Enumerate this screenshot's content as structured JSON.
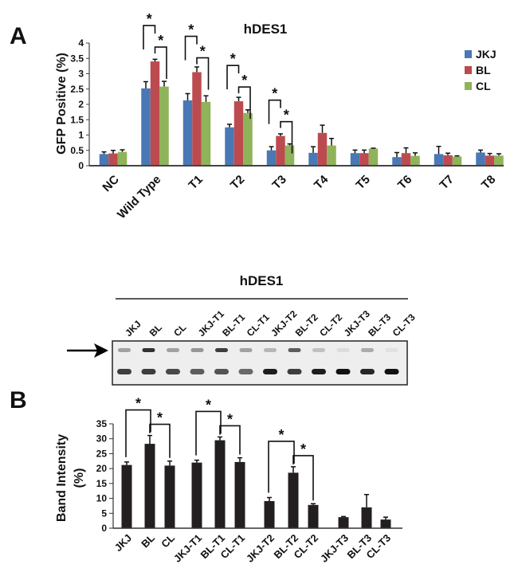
{
  "panel_labels": [
    "A",
    "B"
  ],
  "chart_data": [
    {
      "type": "bar",
      "title": "hDES1",
      "ylabel": "GFP Positive (%)",
      "xlabel": "",
      "ylim": [
        0,
        4
      ],
      "yticks": [
        "0",
        "0.5",
        "1",
        "1.5",
        "2",
        "2.5",
        "3",
        "3.5",
        "4"
      ],
      "categories": [
        "NC",
        "Wild Type",
        "T1",
        "T2",
        "T3",
        "T4",
        "T5",
        "T6",
        "T7",
        "T8"
      ],
      "legend_position": "top-right",
      "series": [
        {
          "name": "JKJ",
          "color": "#4a78b5",
          "values": [
            0.38,
            2.52,
            2.13,
            1.25,
            0.5,
            0.42,
            0.41,
            0.28,
            0.38,
            0.43
          ],
          "errors": [
            0.07,
            0.22,
            0.22,
            0.1,
            0.12,
            0.2,
            0.1,
            0.15,
            0.25,
            0.08
          ]
        },
        {
          "name": "BL",
          "color": "#bc4b50",
          "values": [
            0.4,
            3.4,
            3.05,
            2.1,
            0.97,
            1.07,
            0.41,
            0.41,
            0.34,
            0.33
          ],
          "errors": [
            0.1,
            0.07,
            0.17,
            0.13,
            0.07,
            0.25,
            0.1,
            0.17,
            0.07,
            0.07
          ]
        },
        {
          "name": "CL",
          "color": "#8fb35a",
          "values": [
            0.45,
            2.58,
            2.08,
            1.72,
            0.66,
            0.66,
            0.56,
            0.32,
            0.3,
            0.33
          ],
          "errors": [
            0.07,
            0.17,
            0.2,
            0.1,
            0.05,
            0.23,
            0.01,
            0.1,
            0.02,
            0.06
          ]
        }
      ],
      "significance_marker": "*",
      "significance": [
        [
          1,
          0,
          1
        ],
        [
          1,
          1,
          2
        ],
        [
          2,
          0,
          1
        ],
        [
          2,
          1,
          2
        ],
        [
          3,
          0,
          1
        ],
        [
          3,
          1,
          2
        ],
        [
          4,
          0,
          1
        ],
        [
          4,
          1,
          2
        ]
      ]
    },
    {
      "type": "bar",
      "title": "hDES1",
      "ylabel": "Band Intensity (%)",
      "ylabel_lines": [
        "Band Intensity",
        "(%)"
      ],
      "ylim": [
        0,
        35
      ],
      "yticks": [
        "0",
        "5",
        "10",
        "15",
        "20",
        "25",
        "30",
        "35"
      ],
      "categories": [
        "JKJ",
        "BL",
        "CL",
        "JKJ-T1",
        "BL-T1",
        "CL-T1",
        "JKJ-T2",
        "BL-T2",
        "CL-T2",
        "JKJ-T3",
        "BL-T3",
        "CL-T3"
      ],
      "series": [
        {
          "name": "Band Intensity",
          "color": "#231f20",
          "values": [
            21.2,
            28.3,
            21.0,
            22.0,
            29.5,
            22.2,
            9.1,
            18.6,
            7.8,
            3.7,
            7.0,
            2.9
          ],
          "errors": [
            1.0,
            2.8,
            1.5,
            0.8,
            1.1,
            1.4,
            1.2,
            2.0,
            0.4,
            0.2,
            4.3,
            0.8
          ]
        }
      ],
      "significance_marker": "*",
      "significance": [
        [
          0,
          1
        ],
        [
          1,
          2
        ],
        [
          3,
          4
        ],
        [
          4,
          5
        ],
        [
          6,
          7
        ],
        [
          7,
          8
        ]
      ],
      "gel_upper_band_intensity": [
        0.35,
        0.85,
        0.35,
        0.4,
        0.8,
        0.35,
        0.25,
        0.65,
        0.2,
        0.08,
        0.3,
        0.06
      ],
      "gel_lower_band_intensity": [
        0.8,
        0.8,
        0.75,
        0.65,
        0.7,
        0.6,
        0.95,
        0.8,
        0.95,
        1.0,
        0.9,
        1.0
      ]
    }
  ]
}
